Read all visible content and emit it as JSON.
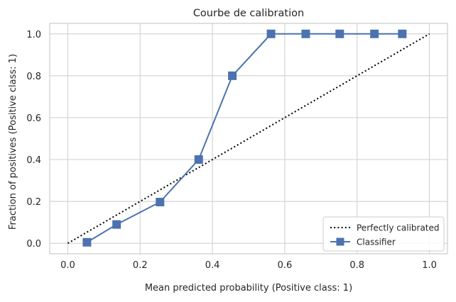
{
  "chart_data": {
    "type": "line",
    "title": "Courbe de calibration",
    "xlabel": "Mean predicted probability (Positive class: 1)",
    "ylabel": "Fraction of positives (Positive class: 1)",
    "xlim": [
      -0.05,
      1.05
    ],
    "ylim": [
      -0.05,
      1.05
    ],
    "xticks": [
      0.0,
      0.2,
      0.4,
      0.6,
      0.8,
      1.0
    ],
    "yticks": [
      0.0,
      0.2,
      0.4,
      0.6,
      0.8,
      1.0
    ],
    "xtick_labels": [
      "0.0",
      "0.2",
      "0.4",
      "0.6",
      "0.8",
      "1.0"
    ],
    "ytick_labels": [
      "0.0",
      "0.2",
      "0.4",
      "0.6",
      "0.8",
      "1.0"
    ],
    "grid": true,
    "legend_position": "bottom-right",
    "series": [
      {
        "name": "Perfectly calibrated",
        "style": "dotted",
        "marker": "none",
        "color": "#000000",
        "x": [
          0.0,
          1.0
        ],
        "y": [
          0.0,
          1.0
        ]
      },
      {
        "name": "Classifier",
        "style": "solid",
        "marker": "square",
        "color": "#4c72b0",
        "x": [
          0.053,
          0.135,
          0.255,
          0.362,
          0.455,
          0.562,
          0.658,
          0.752,
          0.848,
          0.925
        ],
        "y": [
          0.005,
          0.09,
          0.197,
          0.4,
          0.8,
          1.0,
          1.0,
          1.0,
          1.0,
          1.0
        ]
      }
    ]
  }
}
